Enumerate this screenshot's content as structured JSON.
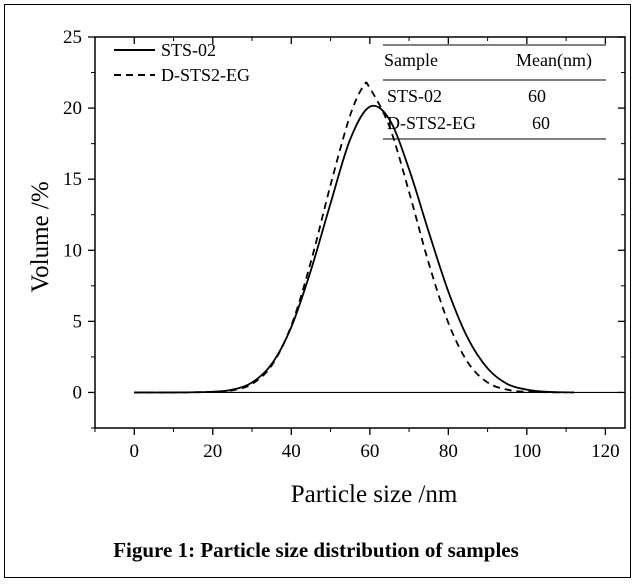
{
  "chart_data": {
    "type": "line",
    "xlabel": "Particle size /nm",
    "ylabel": "Volume /%",
    "xlim": [
      -10,
      125
    ],
    "ylim": [
      -2.5,
      25
    ],
    "xticks": [
      0,
      20,
      40,
      60,
      80,
      100,
      120
    ],
    "yticks": [
      0,
      5,
      10,
      15,
      20,
      25
    ],
    "grid": false,
    "legend_position": "top-left",
    "series": [
      {
        "name": "STS-02",
        "style": "solid",
        "x": [
          0,
          10,
          20,
          25,
          30,
          35,
          40,
          45,
          50,
          55,
          60,
          65,
          70,
          75,
          80,
          85,
          90,
          95,
          100,
          105,
          112
        ],
        "y": [
          0.0,
          0.0,
          0.05,
          0.2,
          0.7,
          2.0,
          4.6,
          8.6,
          13.3,
          17.8,
          20.1,
          19.2,
          15.7,
          11.3,
          7.1,
          3.8,
          1.7,
          0.6,
          0.2,
          0.05,
          0.0
        ]
      },
      {
        "name": "D-STS2-EG",
        "style": "dashed",
        "x": [
          0,
          10,
          20,
          25,
          30,
          35,
          40,
          45,
          50,
          55,
          58.5,
          60,
          65,
          70,
          75,
          80,
          85,
          90,
          95,
          100,
          110
        ],
        "y": [
          0.0,
          0.0,
          0.04,
          0.15,
          0.6,
          1.9,
          4.7,
          9.2,
          14.6,
          19.5,
          21.6,
          21.4,
          18.7,
          14.1,
          9.1,
          4.9,
          2.1,
          0.7,
          0.2,
          0.05,
          0.0
        ]
      }
    ],
    "baseline": {
      "x": [
        0,
        124
      ],
      "y": 0
    },
    "table": {
      "headers": [
        "Sample",
        "Mean(nm)"
      ],
      "rows": [
        [
          "STS-02",
          "60"
        ],
        [
          "D-STS2-EG",
          "60"
        ]
      ]
    }
  },
  "caption": "Figure 1: Particle size distribution of samples"
}
